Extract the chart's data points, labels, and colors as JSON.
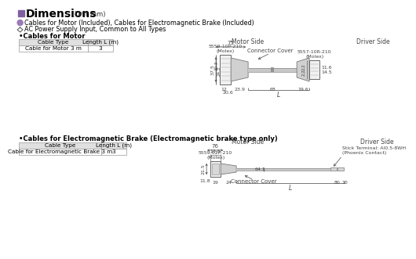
{
  "bg_color": "#ffffff",
  "title_box_color": "#8060a0",
  "bullet_circle_color": "#9b7ab8",
  "title": "Dimensions",
  "title_unit": "(Unit mm)",
  "line1": "Cables for Motor (Included), Cables for Electromagnetic Brake (Included)",
  "line2": "AC Power Supply Input, Common to All Types",
  "sec1_title": "Cables for Motor",
  "t1_h1": "Cable Type",
  "t1_h2": "Length L (m)",
  "t1_r1": "Cable for Motor 3 m",
  "t1_r2": "3",
  "motor_side": "Motor Side",
  "driver_side": "Driver Side",
  "d_75": "75",
  "cn1": "5559-10P-210\n(Molex)",
  "cn2": "Connector Cover",
  "cn3": "5557-10R-210\n(Molex)",
  "dm1": [
    "37.5",
    "30.3",
    "24.3",
    "12",
    "20.6",
    "23.9",
    "68",
    "19.6",
    "11.6",
    "14.5",
    "2.2",
    "2.2",
    "L"
  ],
  "sec2_title": "Cables for Electromagnetic Brake (Electromagnetic brake type only)",
  "t2_h1": "Cable Type",
  "t2_h2": "Length L (m)",
  "t2_r1": "Cable for Electromagnetic Brake 3 m",
  "t2_r2": "3",
  "motor_side2": "Motor Side",
  "driver_side2": "Driver Side",
  "d_76": "76",
  "cn4": "5559-02P-210\n(Molex)",
  "cn5": "Connector Cover",
  "cn6": "Stick Terminal: AI0.5-8WH\n(Phoenix Contact)",
  "dm2": [
    "13.5",
    "21.5",
    "11.8",
    "19",
    "24",
    "64.1",
    "80",
    "10",
    "L"
  ]
}
